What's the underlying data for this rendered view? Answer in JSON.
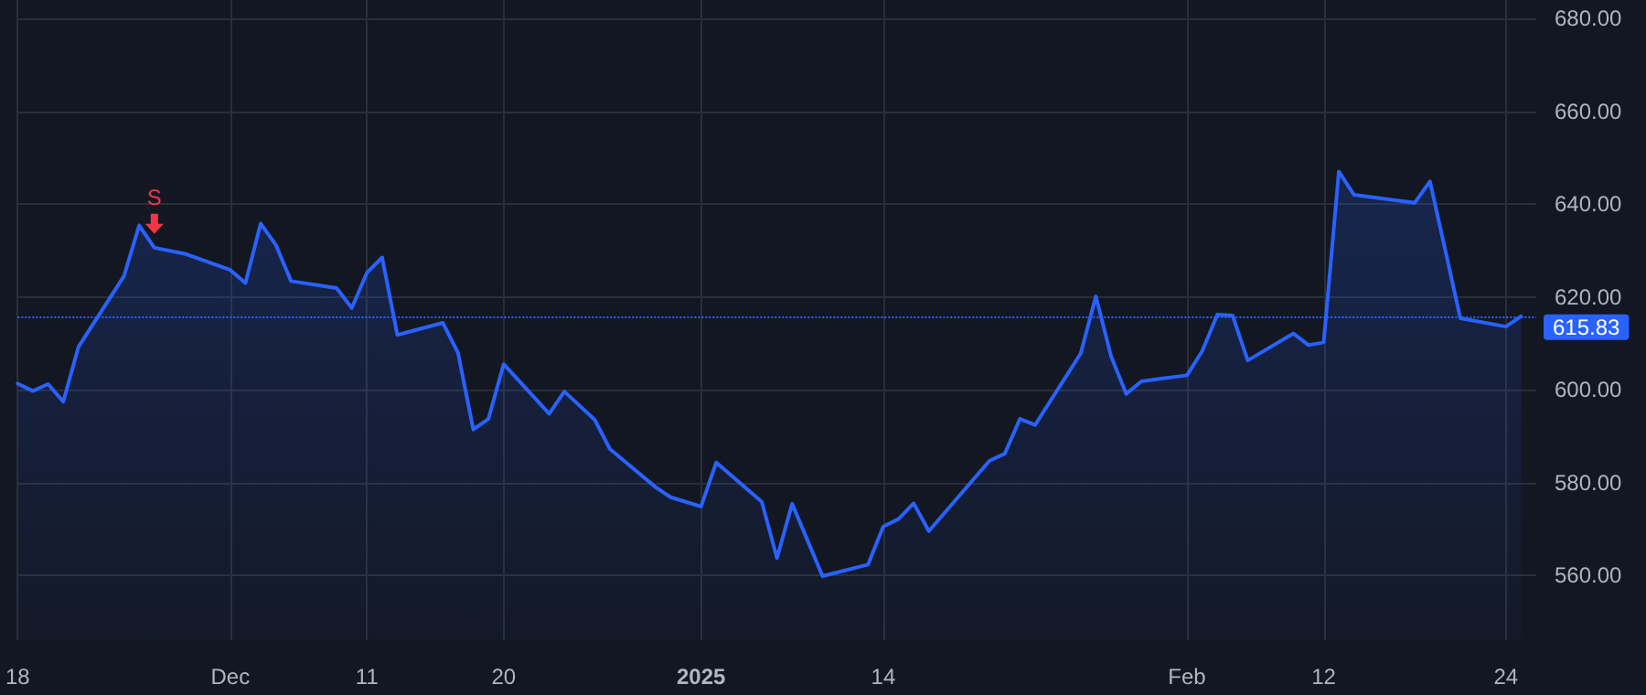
{
  "chart_data": {
    "type": "area",
    "x": [
      "2024-11-18",
      "2024-11-19",
      "2024-11-20",
      "2024-11-21",
      "2024-11-22",
      "2024-11-25",
      "2024-11-26",
      "2024-11-27",
      "2024-11-29",
      "2024-12-02",
      "2024-12-03",
      "2024-12-04",
      "2024-12-05",
      "2024-12-06",
      "2024-12-09",
      "2024-12-10",
      "2024-12-11",
      "2024-12-12",
      "2024-12-13",
      "2024-12-16",
      "2024-12-17",
      "2024-12-18",
      "2024-12-19",
      "2024-12-20",
      "2024-12-23",
      "2024-12-24",
      "2024-12-26",
      "2024-12-27",
      "2024-12-30",
      "2024-12-31",
      "2025-01-02",
      "2025-01-03",
      "2025-01-06",
      "2025-01-07",
      "2025-01-08",
      "2025-01-10",
      "2025-01-13",
      "2025-01-14",
      "2025-01-15",
      "2025-01-16",
      "2025-01-17",
      "2025-01-21",
      "2025-01-22",
      "2025-01-23",
      "2025-01-24",
      "2025-01-27",
      "2025-01-28",
      "2025-01-29",
      "2025-01-30",
      "2025-01-31",
      "2025-02-03",
      "2025-02-04",
      "2025-02-05",
      "2025-02-06",
      "2025-02-07",
      "2025-02-10",
      "2025-02-11",
      "2025-02-12",
      "2025-02-13",
      "2025-02-14",
      "2025-02-18",
      "2025-02-19",
      "2025-02-20",
      "2025-02-21",
      "2025-02-24",
      "2025-02-25"
    ],
    "series": [
      {
        "color": "#2962ff",
        "values": [
          601.3,
          599.7,
          601.2,
          597.4,
          609.2,
          624.5,
          635.4,
          630.6,
          629.3,
          625.8,
          623.0,
          635.8,
          631.2,
          623.4,
          621.9,
          617.6,
          625.2,
          628.5,
          611.8,
          614.4,
          607.9,
          591.4,
          593.7,
          605.5,
          594.8,
          599.6,
          593.5,
          587.2,
          579.0,
          576.8,
          574.8,
          584.3,
          575.8,
          563.7,
          575.4,
          559.8,
          562.3,
          570.5,
          572.1,
          575.5,
          569.5,
          584.7,
          586.2,
          593.7,
          592.4,
          607.8,
          620.1,
          607.2,
          599.1,
          601.8,
          603.1,
          608.3,
          616.2,
          616.0,
          606.3,
          612.1,
          609.6,
          610.2,
          647.0,
          642.0,
          640.3,
          644.9,
          630.2,
          615.4,
          613.6,
          615.83
        ]
      }
    ],
    "xticks": [
      {
        "value": "2024-11-18",
        "label": "18"
      },
      {
        "value": "2024-12-02",
        "label": "Dec"
      },
      {
        "value": "2024-12-11",
        "label": "11"
      },
      {
        "value": "2024-12-20",
        "label": "20"
      },
      {
        "value": "2025-01-02",
        "label": "2025"
      },
      {
        "value": "2025-01-14",
        "label": "14"
      },
      {
        "value": "2025-02-03",
        "label": "Feb"
      },
      {
        "value": "2025-02-12",
        "label": "12"
      },
      {
        "value": "2025-02-24",
        "label": "24"
      }
    ],
    "xlim": [
      "2024-11-18",
      "2025-02-26"
    ],
    "ylim": [
      546,
      684
    ],
    "yticks": [
      {
        "value": 560,
        "label": "560.00"
      },
      {
        "value": 580,
        "label": "580.00"
      },
      {
        "value": 600,
        "label": "600.00"
      },
      {
        "value": 620,
        "label": "620.00"
      },
      {
        "value": 640,
        "label": "640.00"
      },
      {
        "value": 660,
        "label": "660.00"
      },
      {
        "value": 680,
        "label": "680.00"
      }
    ],
    "ref_lines": [
      {
        "axis": "y",
        "value": 615.83,
        "label": "615.83",
        "color": "#2962ff",
        "line_style": "dotted"
      }
    ],
    "annotations": [
      {
        "text": "S",
        "x": "2024-11-27",
        "y": 630.6
      }
    ],
    "grid": true,
    "marker": "none",
    "line_style": "solid"
  }
}
